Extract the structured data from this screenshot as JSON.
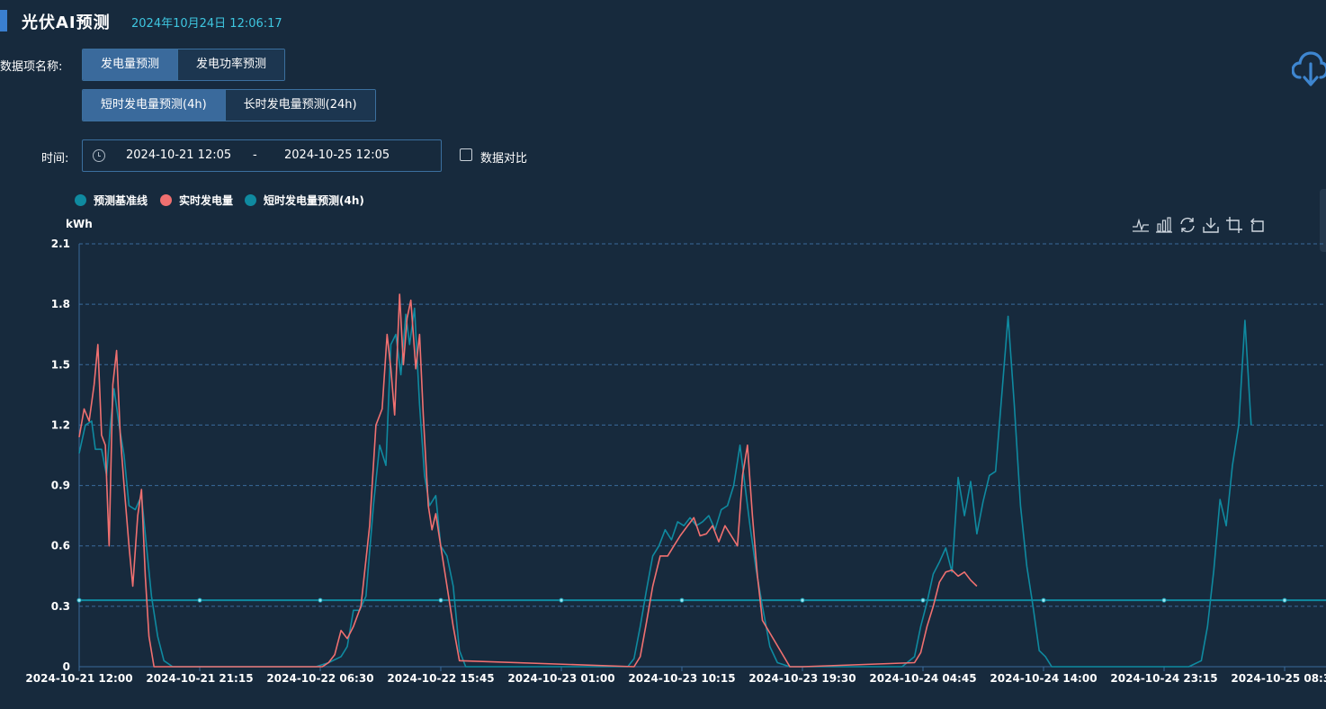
{
  "header": {
    "title": "光伏AI预测",
    "datetime": "2024年10月24日 12:06:17"
  },
  "filters": {
    "data_item_label": "数据项名称:",
    "data_item_tabs": [
      {
        "label": "发电量预测",
        "active": true
      },
      {
        "label": "发电功率预测",
        "active": false
      }
    ],
    "horizon_tabs": [
      {
        "label": "短时发电量预测(4h)",
        "active": true
      },
      {
        "label": "长时发电量预测(24h)",
        "active": false
      }
    ],
    "time_label": "时间:",
    "time_start": "2024-10-21 12:05",
    "time_separator": "-",
    "time_end": "2024-10-25 12:05",
    "compare_label": "数据对比",
    "compare_checked": false
  },
  "download_icon": "cloud-download-icon",
  "toolbox": [
    "line-icon",
    "bar-icon",
    "restore-icon",
    "save-image-icon",
    "zoom-icon",
    "zoom-back-icon"
  ],
  "colors": {
    "baseline": "#0f8aa0",
    "actual": "#f07070",
    "short_forecast": "#0f8aa0",
    "accent": "#3ec6e0"
  },
  "chart_data": {
    "type": "line",
    "ylabel": "kWh",
    "ylim": [
      0,
      2.1
    ],
    "yticks": [
      "0",
      "0.3",
      "0.6",
      "0.9",
      "1.2",
      "1.5",
      "1.8",
      "2.1"
    ],
    "xtick_labels": [
      "2024-10-21 12:00",
      "2024-10-21 21:15",
      "2024-10-22 06:30",
      "2024-10-22 15:45",
      "2024-10-23 01:00",
      "2024-10-23 10:15",
      "2024-10-23 19:30",
      "2024-10-24 04:45",
      "2024-10-24 14:00",
      "2024-10-24 23:15",
      "2024-10-25 08:30"
    ],
    "legend_position": "top-left",
    "grid": true,
    "series": [
      {
        "name": "预测基准线",
        "color": "#0f8aa0",
        "values": [
          [
            0,
            0.33
          ],
          [
            100,
            0.33
          ]
        ]
      },
      {
        "name": "实时发电量",
        "color": "#f07070",
        "values": [
          [
            0,
            1.14
          ],
          [
            0.4,
            1.28
          ],
          [
            0.8,
            1.22
          ],
          [
            1.2,
            1.4
          ],
          [
            1.5,
            1.6
          ],
          [
            1.8,
            1.15
          ],
          [
            2.1,
            1.1
          ],
          [
            2.4,
            0.6
          ],
          [
            2.7,
            1.4
          ],
          [
            3.0,
            1.57
          ],
          [
            3.3,
            1.15
          ],
          [
            3.6,
            0.9
          ],
          [
            4.0,
            0.6
          ],
          [
            4.3,
            0.4
          ],
          [
            4.7,
            0.75
          ],
          [
            5.0,
            0.88
          ],
          [
            5.3,
            0.45
          ],
          [
            5.6,
            0.15
          ],
          [
            6.0,
            0.0
          ],
          [
            7.0,
            0.0
          ],
          [
            19.5,
            0.0
          ],
          [
            20.0,
            0.02
          ],
          [
            20.5,
            0.06
          ],
          [
            21.0,
            0.18
          ],
          [
            21.5,
            0.14
          ],
          [
            22.0,
            0.2
          ],
          [
            22.6,
            0.3
          ],
          [
            23.3,
            0.7
          ],
          [
            23.8,
            1.2
          ],
          [
            24.3,
            1.28
          ],
          [
            24.7,
            1.65
          ],
          [
            25.0,
            1.48
          ],
          [
            25.3,
            1.25
          ],
          [
            25.7,
            1.85
          ],
          [
            26.0,
            1.5
          ],
          [
            26.3,
            1.73
          ],
          [
            26.6,
            1.82
          ],
          [
            27.0,
            1.48
          ],
          [
            27.3,
            1.65
          ],
          [
            27.6,
            1.25
          ],
          [
            28.0,
            0.8
          ],
          [
            28.3,
            0.68
          ],
          [
            28.6,
            0.76
          ],
          [
            29.0,
            0.6
          ],
          [
            29.5,
            0.4
          ],
          [
            30.0,
            0.2
          ],
          [
            30.5,
            0.03
          ],
          [
            44.5,
            0.0
          ],
          [
            45.0,
            0.05
          ],
          [
            45.5,
            0.22
          ],
          [
            46.0,
            0.4
          ],
          [
            46.6,
            0.55
          ],
          [
            47.2,
            0.55
          ],
          [
            47.7,
            0.6
          ],
          [
            48.2,
            0.65
          ],
          [
            48.8,
            0.7
          ],
          [
            49.3,
            0.74
          ],
          [
            49.8,
            0.65
          ],
          [
            50.3,
            0.66
          ],
          [
            50.8,
            0.7
          ],
          [
            51.3,
            0.62
          ],
          [
            51.8,
            0.7
          ],
          [
            52.3,
            0.65
          ],
          [
            52.8,
            0.6
          ],
          [
            53.2,
            0.95
          ],
          [
            53.6,
            1.1
          ],
          [
            54.0,
            0.75
          ],
          [
            54.4,
            0.45
          ],
          [
            54.8,
            0.23
          ],
          [
            57.0,
            0.0
          ],
          [
            58.0,
            0.0
          ],
          [
            67.0,
            0.02
          ],
          [
            67.5,
            0.07
          ],
          [
            68.0,
            0.2
          ],
          [
            68.5,
            0.3
          ],
          [
            69.0,
            0.42
          ],
          [
            69.5,
            0.47
          ],
          [
            70.0,
            0.48
          ],
          [
            70.5,
            0.45
          ],
          [
            71.0,
            0.47
          ],
          [
            71.5,
            0.43
          ],
          [
            72.0,
            0.4
          ]
        ]
      },
      {
        "name": "短时发电量预测(4h)",
        "color": "#0f8aa0",
        "values": [
          [
            0,
            1.06
          ],
          [
            0.5,
            1.2
          ],
          [
            1.0,
            1.22
          ],
          [
            1.3,
            1.08
          ],
          [
            1.8,
            1.08
          ],
          [
            2.2,
            0.95
          ],
          [
            2.5,
            1.2
          ],
          [
            2.8,
            1.38
          ],
          [
            3.2,
            1.2
          ],
          [
            3.6,
            1.05
          ],
          [
            4.0,
            0.8
          ],
          [
            4.5,
            0.78
          ],
          [
            5.0,
            0.85
          ],
          [
            5.4,
            0.6
          ],
          [
            5.8,
            0.35
          ],
          [
            6.3,
            0.15
          ],
          [
            6.8,
            0.03
          ],
          [
            7.5,
            0.0
          ],
          [
            19.0,
            0.0
          ],
          [
            20.0,
            0.02
          ],
          [
            21.0,
            0.05
          ],
          [
            21.5,
            0.1
          ],
          [
            22.0,
            0.28
          ],
          [
            22.5,
            0.28
          ],
          [
            23.0,
            0.35
          ],
          [
            23.6,
            0.8
          ],
          [
            24.1,
            1.1
          ],
          [
            24.6,
            1.0
          ],
          [
            25.0,
            1.6
          ],
          [
            25.4,
            1.65
          ],
          [
            25.8,
            1.45
          ],
          [
            26.2,
            1.75
          ],
          [
            26.5,
            1.6
          ],
          [
            26.9,
            1.78
          ],
          [
            27.3,
            1.3
          ],
          [
            27.7,
            0.95
          ],
          [
            28.1,
            0.8
          ],
          [
            28.6,
            0.85
          ],
          [
            29.0,
            0.6
          ],
          [
            29.5,
            0.55
          ],
          [
            30.0,
            0.4
          ],
          [
            30.5,
            0.08
          ],
          [
            31.0,
            0.0
          ],
          [
            44.0,
            0.0
          ],
          [
            44.5,
            0.04
          ],
          [
            45.0,
            0.2
          ],
          [
            45.5,
            0.38
          ],
          [
            46.0,
            0.55
          ],
          [
            46.5,
            0.6
          ],
          [
            47.0,
            0.68
          ],
          [
            47.5,
            0.63
          ],
          [
            48.0,
            0.72
          ],
          [
            48.5,
            0.7
          ],
          [
            49.0,
            0.74
          ],
          [
            49.5,
            0.7
          ],
          [
            50.0,
            0.72
          ],
          [
            50.5,
            0.75
          ],
          [
            51.0,
            0.68
          ],
          [
            51.5,
            0.78
          ],
          [
            52.0,
            0.8
          ],
          [
            52.5,
            0.9
          ],
          [
            53.0,
            1.1
          ],
          [
            53.4,
            0.9
          ],
          [
            53.8,
            0.7
          ],
          [
            54.3,
            0.48
          ],
          [
            54.8,
            0.3
          ],
          [
            55.4,
            0.1
          ],
          [
            56.0,
            0.02
          ],
          [
            57.0,
            0.0
          ],
          [
            66.0,
            0.0
          ],
          [
            67.0,
            0.05
          ],
          [
            67.5,
            0.2
          ],
          [
            68.0,
            0.32
          ],
          [
            68.5,
            0.46
          ],
          [
            69.0,
            0.52
          ],
          [
            69.5,
            0.59
          ],
          [
            70.0,
            0.47
          ],
          [
            70.5,
            0.94
          ],
          [
            71.0,
            0.75
          ],
          [
            71.5,
            0.92
          ],
          [
            72.0,
            0.66
          ],
          [
            72.5,
            0.82
          ],
          [
            73.0,
            0.95
          ],
          [
            73.5,
            0.97
          ],
          [
            74.0,
            1.35
          ],
          [
            74.5,
            1.74
          ],
          [
            75.0,
            1.3
          ],
          [
            75.5,
            0.8
          ],
          [
            76.0,
            0.5
          ],
          [
            76.5,
            0.3
          ],
          [
            77.0,
            0.08
          ],
          [
            77.5,
            0.05
          ],
          [
            78.0,
            0.0
          ],
          [
            89.0,
            0.0
          ],
          [
            90.0,
            0.03
          ],
          [
            90.5,
            0.2
          ],
          [
            91.0,
            0.48
          ],
          [
            91.5,
            0.83
          ],
          [
            92.0,
            0.7
          ],
          [
            92.5,
            1.0
          ],
          [
            93.0,
            1.2
          ],
          [
            93.5,
            1.72
          ],
          [
            94.0,
            1.2
          ]
        ]
      }
    ]
  }
}
